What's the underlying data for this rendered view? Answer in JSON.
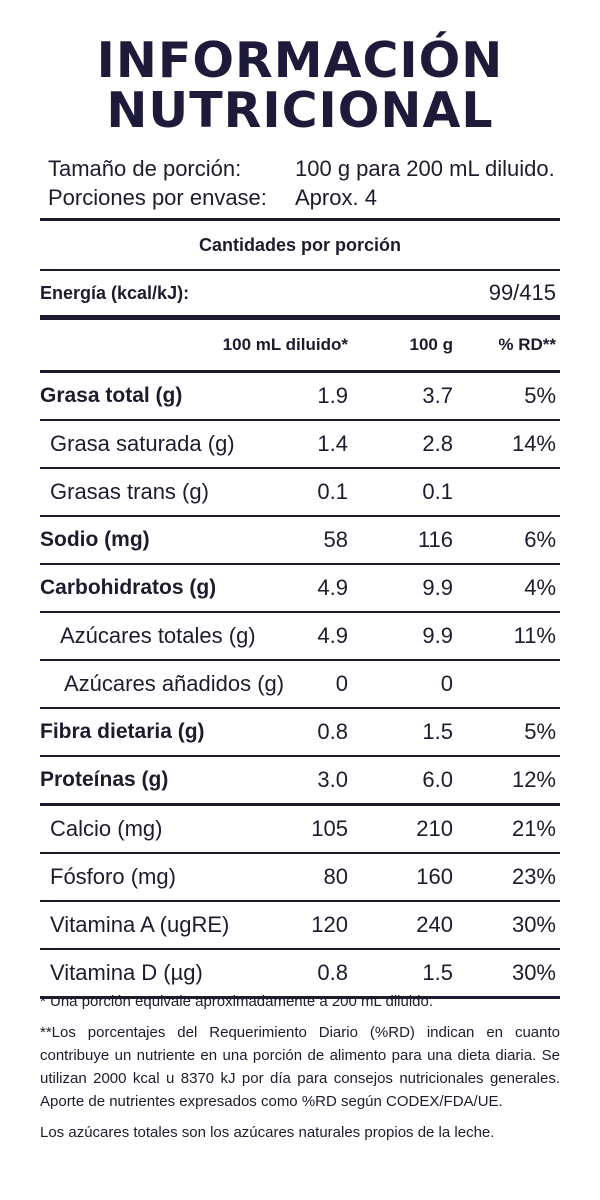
{
  "title": {
    "line1": "INFORMACIÓN",
    "line2": "NUTRICIONAL"
  },
  "serving": {
    "size_label": "Tamaño de porción:",
    "size_value": "100 g para 200 mL diluido.",
    "count_label": "Porciones por envase:",
    "count_value": "Aprox. 4"
  },
  "amounts_heading": "Cantidades por porción",
  "energy": {
    "label": "Energía (kcal/kJ):",
    "value": "99/415"
  },
  "columns": {
    "c1": "100 mL diluido*",
    "c2": "100 g",
    "c3": "% RD**"
  },
  "nutrients": [
    {
      "name": "Grasa total (g)",
      "v1": "1.9",
      "v2": "3.7",
      "v3": "5%"
    },
    {
      "name": "Grasa saturada (g)",
      "v1": "1.4",
      "v2": "2.8",
      "v3": "14%"
    },
    {
      "name": "Grasas trans (g)",
      "v1": "0.1",
      "v2": "0.1",
      "v3": ""
    },
    {
      "name": "Sodio (mg)",
      "v1": "58",
      "v2": "116",
      "v3": "6%"
    },
    {
      "name": "Carbohidratos (g)",
      "v1": "4.9",
      "v2": "9.9",
      "v3": "4%"
    },
    {
      "name": "Azúcares totales (g)",
      "v1": "4.9",
      "v2": "9.9",
      "v3": "11%"
    },
    {
      "name": "Azúcares añadidos (g)",
      "v1": "0",
      "v2": "0",
      "v3": ""
    },
    {
      "name": "Fibra dietaria (g)",
      "v1": "0.8",
      "v2": "1.5",
      "v3": "5%"
    },
    {
      "name": "Proteínas (g)",
      "v1": "3.0",
      "v2": "6.0",
      "v3": "12%"
    },
    {
      "name": "Calcio (mg)",
      "v1": "105",
      "v2": "210",
      "v3": "21%"
    },
    {
      "name": "Fósforo (mg)",
      "v1": "80",
      "v2": "160",
      "v3": "23%"
    },
    {
      "name": "Vitamina A (ugRE)",
      "v1": "120",
      "v2": "240",
      "v3": "30%"
    },
    {
      "name": "Vitamina D (µg)",
      "v1": "0.8",
      "v2": "1.5",
      "v3": "30%"
    }
  ],
  "footnotes": {
    "portion": "* Una porción equivale aproximadamente a 200 mL diluido.",
    "rd": "**Los porcentajes del Requerimiento Diario (%RD) indican en cuanto contribuye un nutriente en una porción de alimento para una dieta diaria. Se utilizan 2000 kcal u 8370 kJ por día para consejos nutricionales generales. Aporte de nutrientes expresados como %RD según CODEX/FDA/UE.",
    "sugars": "Los azúcares totales son los azúcares naturales propios de la leche."
  },
  "colors": {
    "title": "#1e1b3a",
    "text": "#1c1c2e",
    "rules": "#1c1c2e"
  }
}
